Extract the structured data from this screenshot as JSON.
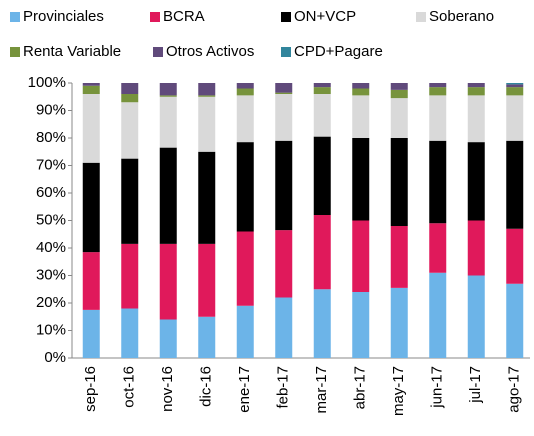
{
  "chart_data": {
    "type": "stacked_bar",
    "categories": [
      "sep-16",
      "oct-16",
      "nov-16",
      "dic-16",
      "ene-17",
      "feb-17",
      "mar-17",
      "abr-17",
      "may-17",
      "jun-17",
      "jul-17",
      "ago-17"
    ],
    "series": [
      {
        "name": "Provinciales",
        "color": "#6cb4e8",
        "values": [
          17.5,
          18,
          14,
          15,
          19,
          22,
          25,
          24,
          25.5,
          31,
          30,
          27
        ]
      },
      {
        "name": "BCRA",
        "color": "#e0195b",
        "values": [
          21,
          23.5,
          27.5,
          26.5,
          27,
          24.5,
          27,
          26,
          22.5,
          18,
          20,
          20
        ]
      },
      {
        "name": "ON+VCP",
        "color": "#000000",
        "values": [
          32.5,
          31,
          35,
          33.5,
          32.5,
          32.5,
          28.5,
          30,
          32,
          30,
          28.5,
          32
        ]
      },
      {
        "name": "Soberano",
        "color": "#d9d9d9",
        "values": [
          25,
          20.5,
          18.5,
          20,
          17,
          17,
          15.5,
          15.5,
          14.5,
          16.5,
          17,
          16.5
        ]
      },
      {
        "name": "Renta Variable",
        "color": "#77933c",
        "values": [
          3,
          3,
          0.5,
          0.5,
          2.5,
          0.5,
          2.5,
          2.5,
          3,
          3,
          3,
          3
        ]
      },
      {
        "name": "Otros Activos",
        "color": "#604a7b",
        "values": [
          1,
          4,
          4.5,
          4.5,
          2,
          3.5,
          1.5,
          2,
          2.5,
          1.5,
          1.5,
          1
        ]
      },
      {
        "name": "CPD+Pagare",
        "color": "#31859c",
        "values": [
          0,
          0,
          0,
          0,
          0,
          0,
          0,
          0,
          0,
          0,
          0,
          0.5
        ]
      }
    ],
    "ylim": [
      0,
      100
    ],
    "yticks": [
      {
        "value": 0,
        "label": "0%"
      },
      {
        "value": 10,
        "label": "10%"
      },
      {
        "value": 20,
        "label": "20%"
      },
      {
        "value": 30,
        "label": "30%"
      },
      {
        "value": 40,
        "label": "40%"
      },
      {
        "value": 50,
        "label": "50%"
      },
      {
        "value": 60,
        "label": "60%"
      },
      {
        "value": 70,
        "label": "70%"
      },
      {
        "value": 80,
        "label": "80%"
      },
      {
        "value": 90,
        "label": "90%"
      },
      {
        "value": 100,
        "label": "100%"
      }
    ],
    "grid": false,
    "legend": "top"
  }
}
